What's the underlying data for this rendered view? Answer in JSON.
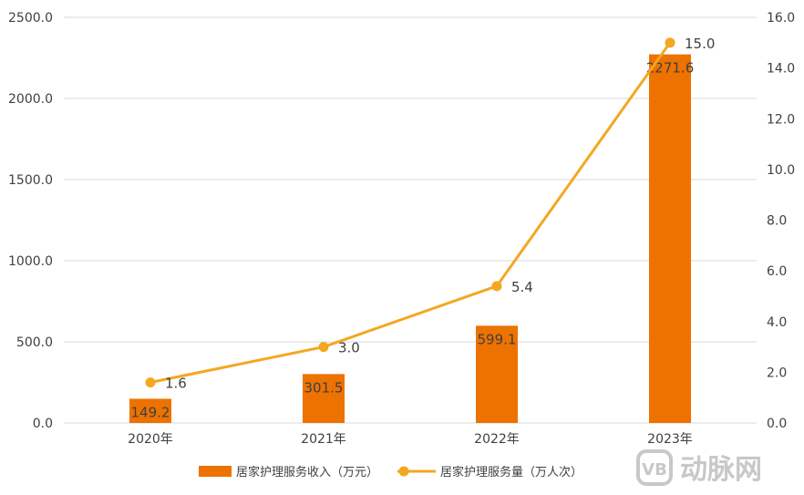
{
  "chart_data": {
    "type": "bar",
    "categories": [
      "2020年",
      "2021年",
      "2022年",
      "2023年"
    ],
    "series": [
      {
        "name": "居家护理服务收入（万元）",
        "type": "bar",
        "axis": "left",
        "values": [
          149.2,
          301.5,
          599.1,
          2271.6
        ],
        "labels": [
          "149.2",
          "301.5",
          "599.1",
          "2271.6"
        ],
        "color": "#ED7200"
      },
      {
        "name": "居家护理服务量（万人次）",
        "type": "line",
        "axis": "right",
        "values": [
          1.6,
          3.0,
          5.4,
          15.0
        ],
        "labels": [
          "1.6",
          "3.0",
          "5.4",
          "15.0"
        ],
        "color": "#F4A720"
      }
    ],
    "y_left": {
      "min": 0,
      "max": 2500,
      "step": 500,
      "ticks": [
        "0.0",
        "500.0",
        "1000.0",
        "1500.0",
        "2000.0",
        "2500.0"
      ]
    },
    "y_right": {
      "min": 0,
      "max": 16,
      "step": 2,
      "ticks": [
        "0.0",
        "2.0",
        "4.0",
        "6.0",
        "8.0",
        "10.0",
        "12.0",
        "14.0",
        "16.0"
      ]
    },
    "grid": true,
    "legend_position": "bottom"
  },
  "watermark": {
    "badge": "VB",
    "text": "动脉网"
  },
  "colors": {
    "grid": "#d9d9d9",
    "text": "#404040",
    "watermark": "#c8c8c8"
  }
}
